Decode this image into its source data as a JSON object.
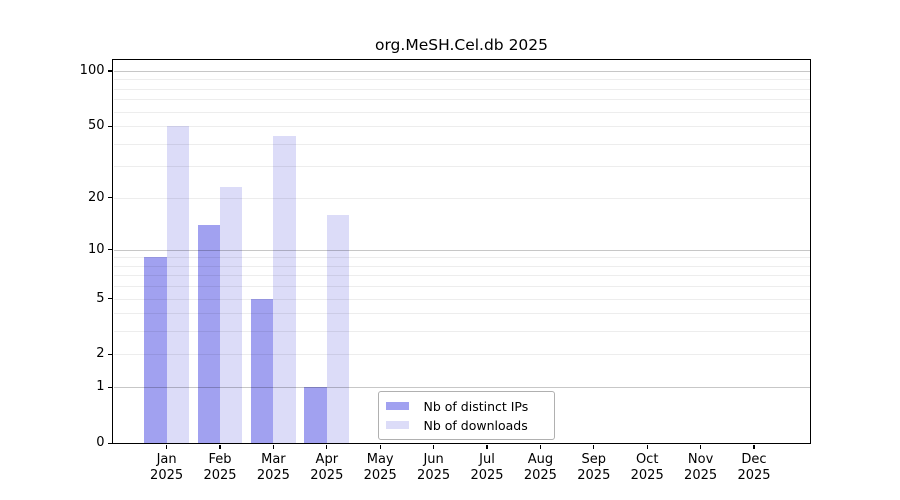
{
  "title": "org.MeSH.Cel.db 2025",
  "legend": {
    "items": [
      {
        "label": "Nb of distinct IPs",
        "color": "#a1a1f0"
      },
      {
        "label": "Nb of downloads",
        "color": "#dcdcf8"
      }
    ]
  },
  "chart_data": {
    "type": "bar",
    "title": "org.MeSH.Cel.db 2025",
    "categories": [
      "Jan 2025",
      "Feb 2025",
      "Mar 2025",
      "Apr 2025",
      "May 2025",
      "Jun 2025",
      "Jul 2025",
      "Aug 2025",
      "Sep 2025",
      "Oct 2025",
      "Nov 2025",
      "Dec 2025"
    ],
    "series": [
      {
        "name": "Nb of distinct IPs",
        "color": "#a1a1f0",
        "values": [
          9,
          14,
          5,
          1,
          0,
          0,
          0,
          0,
          0,
          0,
          0,
          0
        ]
      },
      {
        "name": "Nb of downloads",
        "color": "#dcdcf8",
        "values": [
          50,
          23,
          44,
          16,
          0,
          0,
          0,
          0,
          0,
          0,
          0,
          0
        ]
      }
    ],
    "xlabel": "",
    "ylabel": "",
    "y_scale": "log10(1+v)",
    "y_tick_values": [
      0,
      1,
      2,
      5,
      10,
      20,
      50,
      100
    ],
    "y_tick_labels": [
      "0",
      "1",
      "2",
      "5",
      "10",
      "20",
      "50",
      "100"
    ],
    "y_major_gridlines": [
      1,
      10,
      100
    ],
    "y_minor_gridlines": [
      2,
      3,
      4,
      5,
      6,
      7,
      8,
      9,
      20,
      30,
      40,
      50,
      60,
      70,
      80,
      90
    ],
    "ylim": [
      0,
      115
    ],
    "grid": true,
    "legend_position": "lower center-right"
  }
}
